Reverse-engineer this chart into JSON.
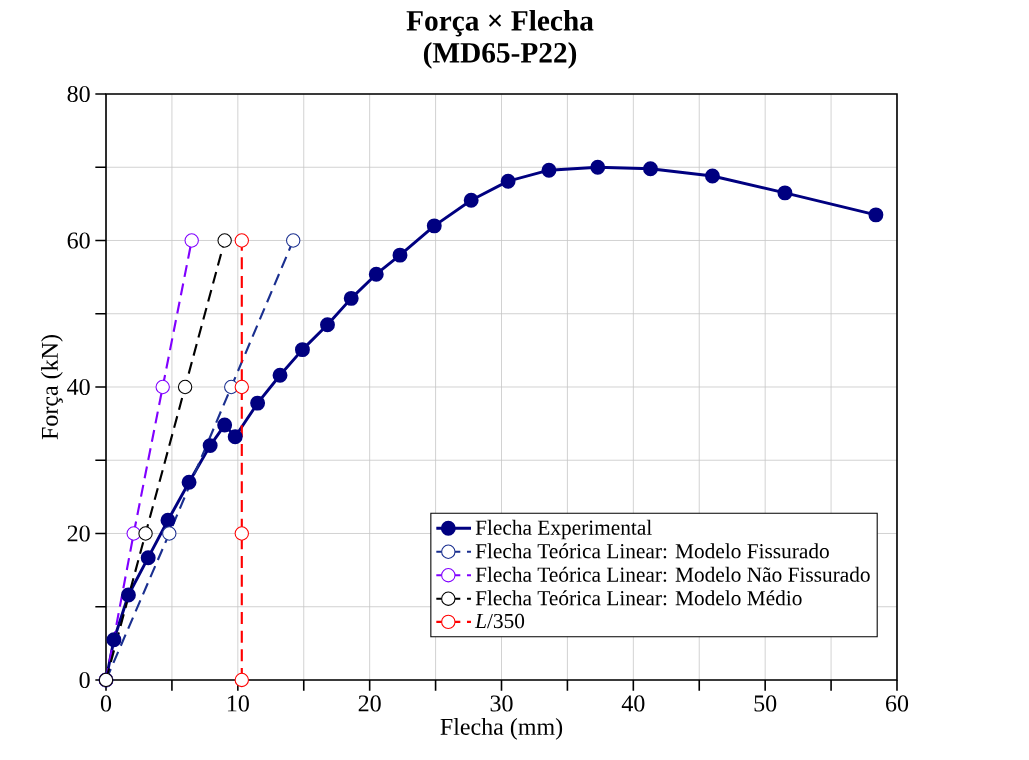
{
  "chart_data": {
    "type": "line",
    "title": "**Força** × **Flecha**",
    "subtitle": "(MD65-P22)",
    "xlabel": "Flecha (mm)",
    "ylabel": "Força (kN)",
    "xlim": [
      0,
      60
    ],
    "ylim": [
      0,
      80
    ],
    "xticks": [
      0,
      {
        "value": 5,
        "label": null
      },
      10,
      {
        "value": 15,
        "label": null
      },
      20,
      {
        "value": 25,
        "label": null
      },
      30,
      {
        "value": 35,
        "label": null
      },
      40,
      {
        "value": 45,
        "label": null
      },
      50,
      {
        "value": 55,
        "label": null
      },
      60
    ],
    "yticks": [
      0,
      {
        "value": 10,
        "label": null
      },
      20,
      {
        "value": 30,
        "label": null
      },
      40,
      {
        "value": 50,
        "label": null
      },
      60,
      {
        "value": 70,
        "label": null
      },
      80
    ],
    "grid": true,
    "legend": "bottom right",
    "marker": "circle",
    "series": [
      {
        "name": "Flecha Experimental",
        "color": "#000080",
        "line_style": "solid",
        "x": [
          0,
          0.6,
          1.7,
          3.2,
          4.7,
          6.3,
          7.9,
          9.0,
          9.8,
          11.5,
          13.2,
          14.9,
          16.8,
          18.6,
          20.5,
          22.3,
          24.9,
          27.7,
          30.5,
          33.6,
          37.3,
          41.3,
          46.0,
          51.5,
          58.4
        ],
        "values": [
          0,
          5.5,
          11.6,
          16.7,
          21.8,
          27,
          32,
          34.8,
          33.2,
          37.8,
          41.6,
          45.1,
          48.5,
          52.1,
          55.4,
          58.0,
          62.0,
          65.5,
          68.1,
          69.6,
          70.0,
          69.8,
          68.8,
          66.5,
          63.5
        ]
      },
      {
        "name": "Flecha Teórica Linear: Modelo Fissurado",
        "color": "#1a2f8f",
        "line_style": "dashed",
        "x": [
          0,
          4.8,
          9.5,
          14.2
        ],
        "values": [
          0,
          20,
          40,
          60
        ]
      },
      {
        "name": "Flecha Teórica Linear: Modelo Não Fissurado",
        "color": "#8000ff",
        "line_style": "dashed",
        "x": [
          0,
          2.1,
          4.3,
          6.5
        ],
        "values": [
          0,
          20,
          40,
          60
        ]
      },
      {
        "name": "Flecha Teórica Linear: Modelo Médio",
        "color": "#000000",
        "line_style": "dashed",
        "x": [
          0,
          3.0,
          6.0,
          9.0
        ],
        "values": [
          0,
          20,
          40,
          60
        ]
      },
      {
        "name": "*L*/350",
        "color": "#ff0000",
        "line_style": "dashed",
        "x": [
          10.3,
          10.3,
          10.3,
          10.3
        ],
        "values": [
          0,
          20,
          40,
          60
        ]
      }
    ]
  }
}
